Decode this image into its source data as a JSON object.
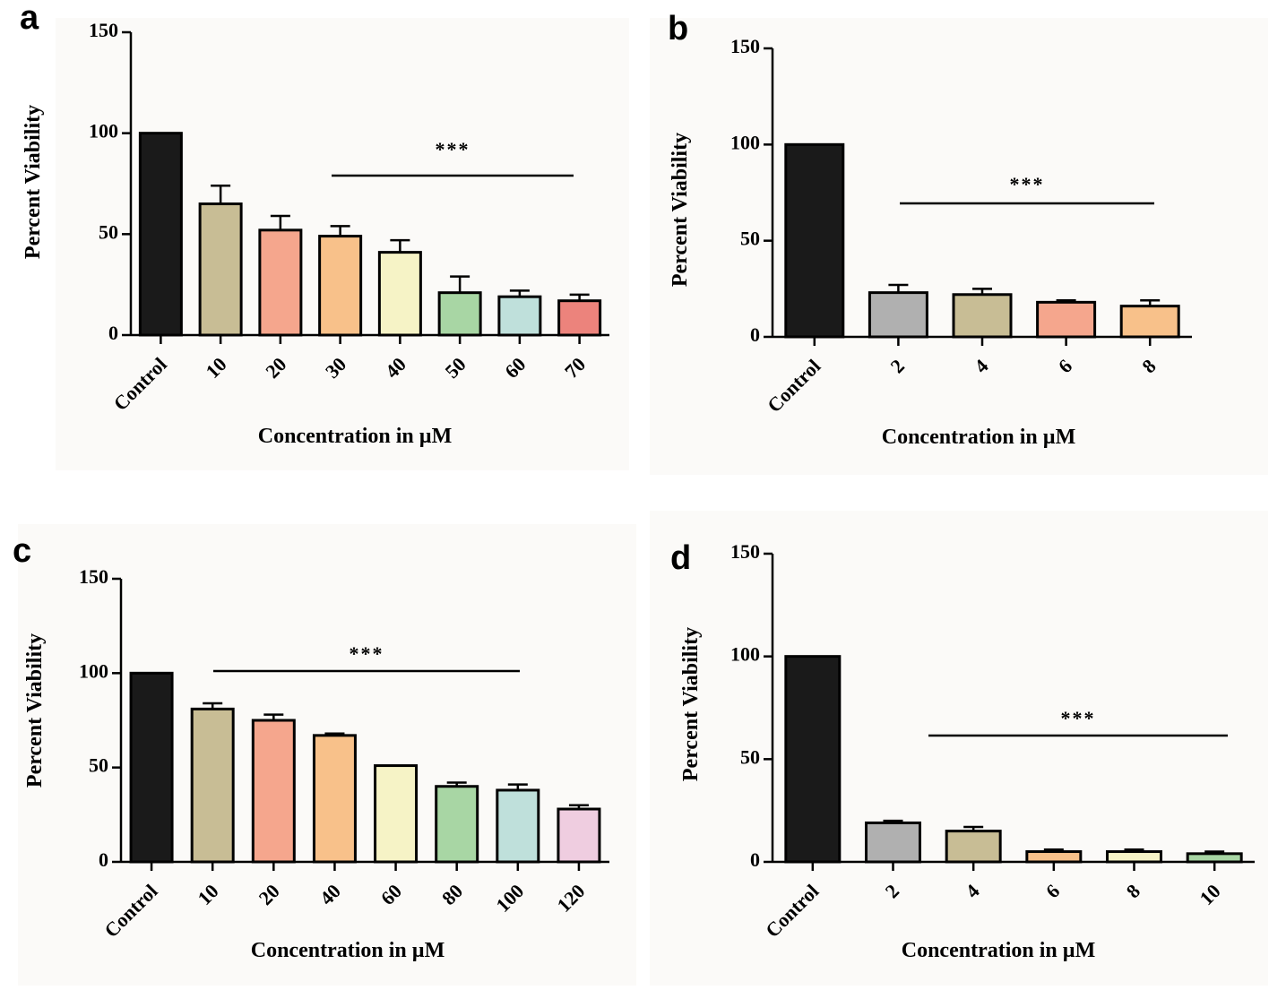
{
  "chart_data": [
    {
      "id": "a",
      "panel_label": "a",
      "type": "bar",
      "title": "",
      "xlabel": "Concentration in µM",
      "ylabel": "Percent Viability",
      "ylim": [
        0,
        150
      ],
      "yticks": [
        "0",
        "50",
        "100",
        "150"
      ],
      "categories": [
        "Control",
        "10",
        "20",
        "30",
        "40",
        "50",
        "60",
        "70"
      ],
      "values": [
        100,
        65,
        52,
        49,
        41,
        21,
        19,
        17
      ],
      "errors": [
        0,
        9,
        7,
        5,
        6,
        8,
        3,
        3
      ],
      "colors": [
        "#1a1a1a",
        "#c8bd95",
        "#f5a68d",
        "#f8c18a",
        "#f6f3c6",
        "#a8d6a4",
        "#bfe0db",
        "#ec837c"
      ],
      "significance": {
        "label": "***",
        "from": 3,
        "to": 7
      }
    },
    {
      "id": "b",
      "panel_label": "b",
      "type": "bar",
      "title": "",
      "xlabel": "Concentration in µM",
      "ylabel": "Percent Viability",
      "ylim": [
        0,
        150
      ],
      "yticks": [
        "0",
        "50",
        "100",
        "150"
      ],
      "categories": [
        "Control",
        "2",
        "4",
        "6",
        "8"
      ],
      "values": [
        100,
        23,
        22,
        18,
        16
      ],
      "errors": [
        0,
        4,
        3,
        1,
        3
      ],
      "colors": [
        "#1a1a1a",
        "#b0b0b0",
        "#c8bd95",
        "#f5a68d",
        "#f8c18a"
      ],
      "significance": {
        "label": "***",
        "from": 1,
        "to": 4
      }
    },
    {
      "id": "c",
      "panel_label": "c",
      "type": "bar",
      "title": "",
      "xlabel": "Concentration in µM",
      "ylabel": "Percent Viability",
      "ylim": [
        0,
        150
      ],
      "yticks": [
        "0",
        "50",
        "100",
        "150"
      ],
      "categories": [
        "Control",
        "10",
        "20",
        "40",
        "60",
        "80",
        "100",
        "120"
      ],
      "values": [
        100,
        81,
        75,
        67,
        51,
        40,
        38,
        28
      ],
      "errors": [
        0,
        3,
        3,
        1,
        0,
        2,
        3,
        2
      ],
      "colors": [
        "#1a1a1a",
        "#c8bd95",
        "#f5a68d",
        "#f8c18a",
        "#f6f3c6",
        "#a8d6a4",
        "#bfe0db",
        "#efcde0"
      ],
      "significance": {
        "label": "***",
        "from": 1,
        "to": 6
      }
    },
    {
      "id": "d",
      "panel_label": "d",
      "type": "bar",
      "title": "",
      "xlabel": "Concentration in µM",
      "ylabel": "Percent Viability",
      "ylim": [
        0,
        150
      ],
      "yticks": [
        "0",
        "50",
        "100",
        "150"
      ],
      "categories": [
        "Control",
        "2",
        "4",
        "6",
        "8",
        "10"
      ],
      "values": [
        100,
        19,
        15,
        5,
        5,
        4
      ],
      "errors": [
        0,
        1,
        2,
        1,
        1,
        1
      ],
      "colors": [
        "#1a1a1a",
        "#b0b0b0",
        "#c8bd95",
        "#f8c18a",
        "#f6f3c6",
        "#a8d6a4"
      ],
      "significance": {
        "label": "***",
        "from": 2,
        "to": 5
      }
    }
  ]
}
